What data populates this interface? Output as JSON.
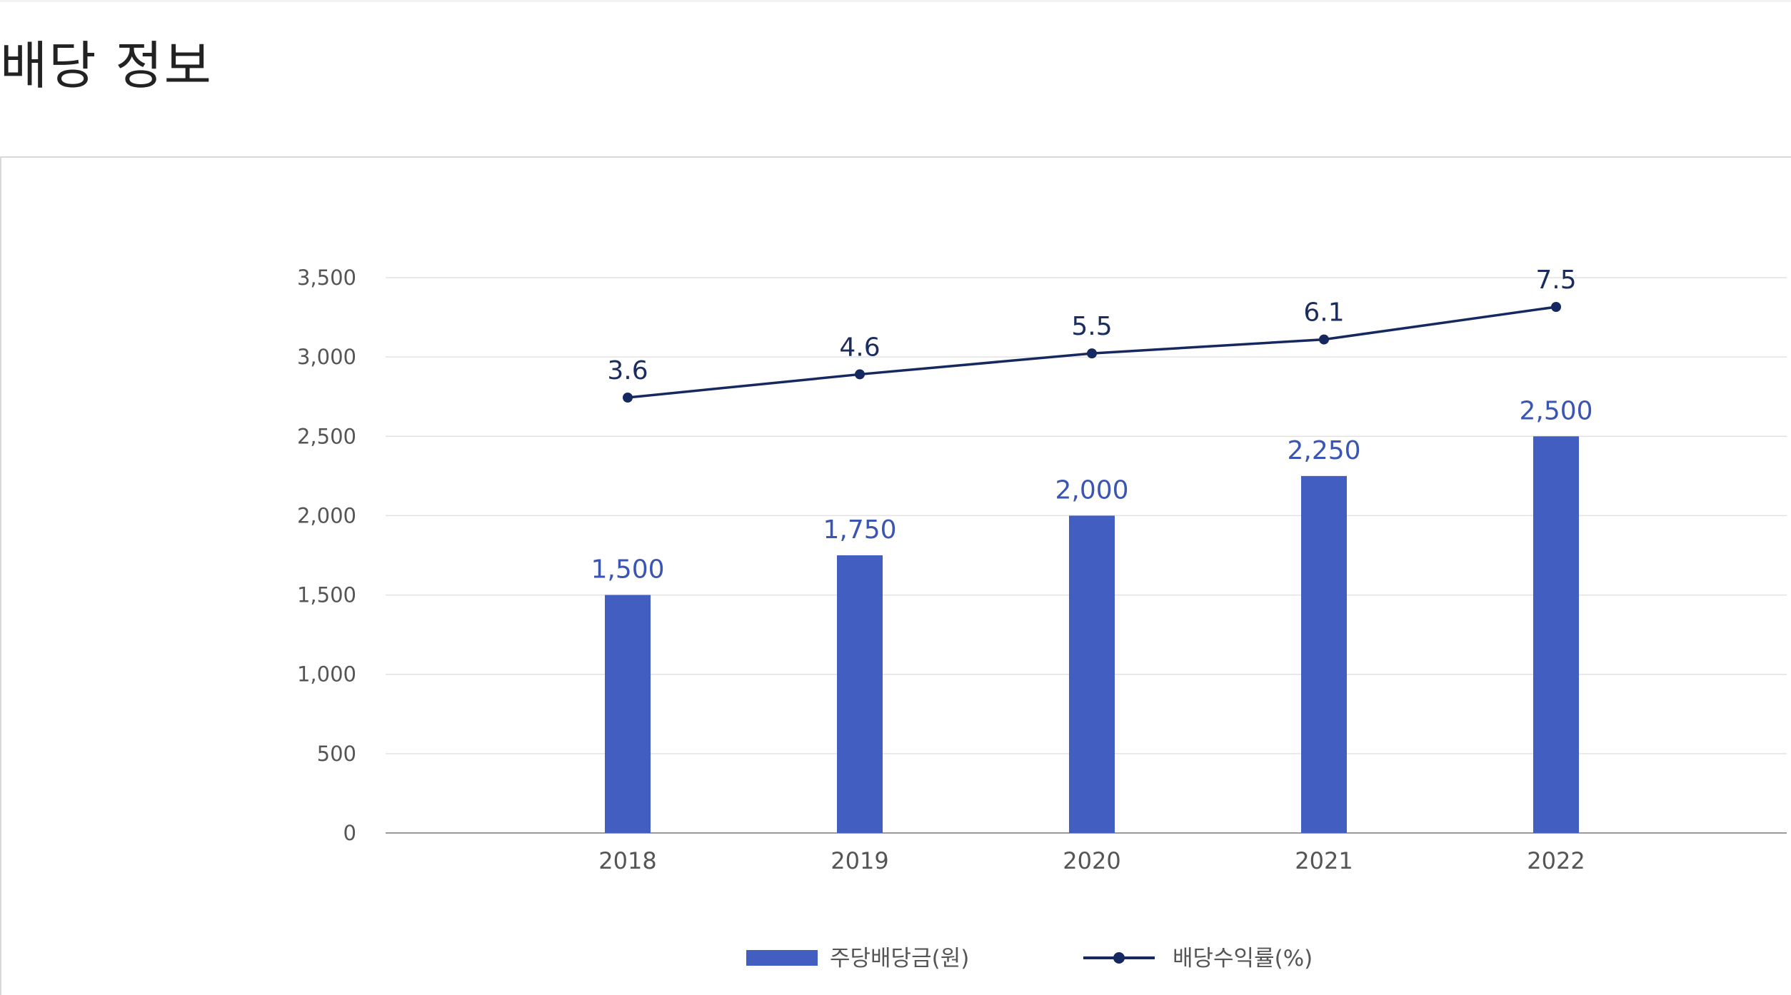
{
  "page": {
    "title": "배당 정보"
  },
  "chart_data": {
    "type": "bar",
    "categories": [
      "2018",
      "2019",
      "2020",
      "2021",
      "2022"
    ],
    "ylim": [
      0,
      3500
    ],
    "yticks": [
      0,
      500,
      1000,
      1500,
      2000,
      2500,
      3000,
      3500
    ],
    "ytick_labels": [
      "0",
      "500",
      "1,000",
      "1,500",
      "2,000",
      "2,500",
      "3,000",
      "3,500"
    ],
    "grid": true,
    "legend_position": "bottom",
    "series": [
      {
        "name": "주당배당금(원)",
        "type": "bar",
        "color": "#425ec1",
        "values": [
          1500,
          1750,
          2000,
          2250,
          2500
        ],
        "labels": [
          "1,500",
          "1,750",
          "2,000",
          "2,250",
          "2,500"
        ]
      },
      {
        "name": "배당수익률(%)",
        "type": "line",
        "color": "#15285f",
        "values": [
          3.6,
          4.6,
          5.5,
          6.1,
          7.5
        ],
        "labels": [
          "3.6",
          "4.6",
          "5.5",
          "6.1",
          "7.5"
        ]
      }
    ]
  }
}
